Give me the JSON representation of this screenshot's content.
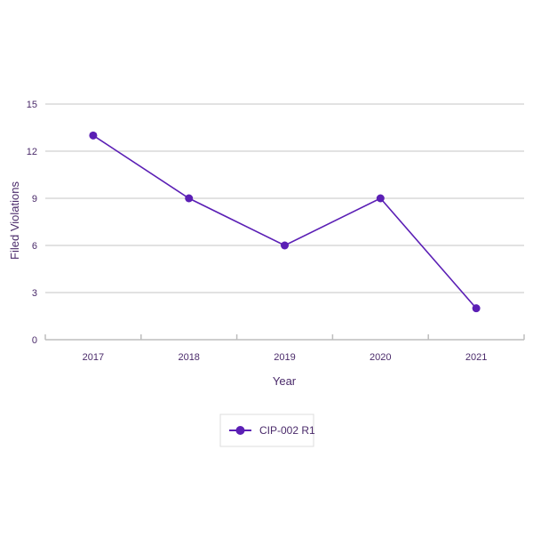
{
  "chart_data": {
    "type": "line",
    "categories": [
      "2017",
      "2018",
      "2019",
      "2020",
      "2021"
    ],
    "series": [
      {
        "name": "CIP-002 R1",
        "values": [
          13,
          9,
          6,
          9,
          2
        ]
      }
    ],
    "xlabel": "Year",
    "ylabel": "Filed Violations",
    "ylim": [
      0,
      15
    ],
    "yticks": [
      "0",
      "3",
      "6",
      "9",
      "12",
      "15"
    ],
    "grid": true,
    "legend_position": "bottom-center",
    "colors": {
      "line": "#5b1fb5",
      "grid": "#d9d9d9",
      "axis": "#bdbdbd"
    }
  }
}
